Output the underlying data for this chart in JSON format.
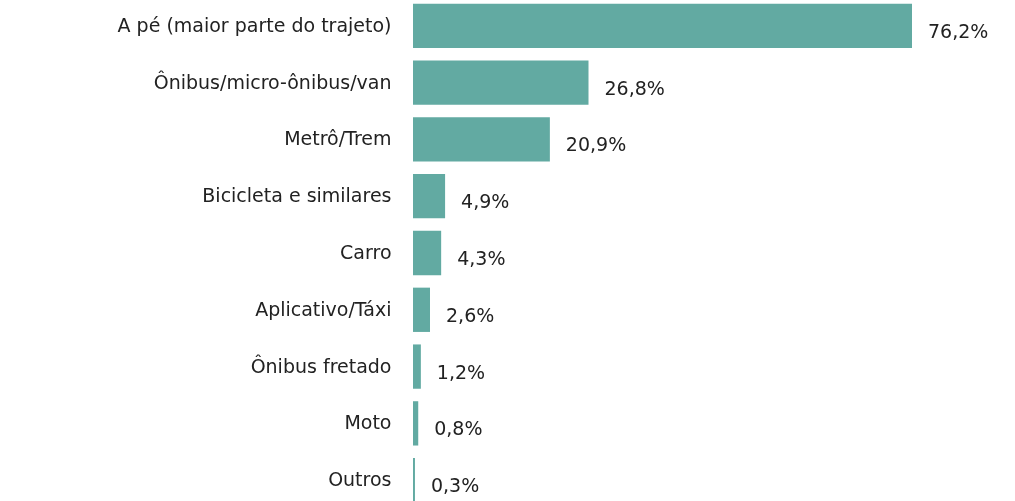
{
  "chart_data": {
    "type": "bar",
    "orientation": "horizontal",
    "categories": [
      "A pé (maior parte do trajeto)",
      "Ônibus/micro-ônibus/van",
      "Metrô/Trem",
      "Bicicleta e similares",
      "Carro",
      "Aplicativo/Táxi",
      "Ônibus fretado",
      "Moto",
      "Outros"
    ],
    "values": [
      76.2,
      26.8,
      20.9,
      4.9,
      4.3,
      2.6,
      1.2,
      0.8,
      0.3
    ],
    "value_labels": [
      "76,2%",
      "26,8%",
      "20,9%",
      "4,9%",
      "4,3%",
      "2,6%",
      "1,2%",
      "0,8%",
      "0,3%"
    ],
    "color": "#62aaa2"
  }
}
